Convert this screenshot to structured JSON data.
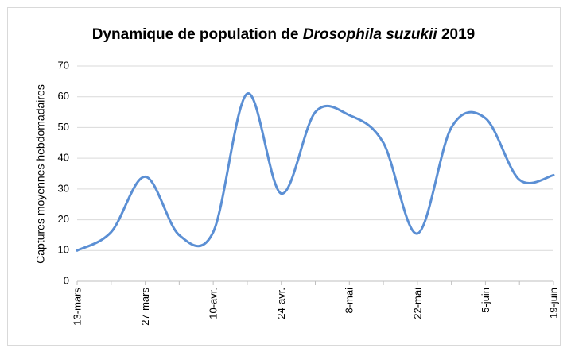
{
  "chart_data": {
    "type": "line",
    "title_parts": [
      "Dynamique de population de",
      "Drosophila suzukii",
      "2019"
    ],
    "y_label": "Captures moyennes hebdomadaires",
    "categories": [
      "13-mars",
      null,
      "27-mars",
      null,
      "10-avr.",
      null,
      "24-avr.",
      null,
      "8-mai",
      null,
      "22-mai",
      null,
      "5-juin",
      null,
      "19-juin"
    ],
    "series": [
      {
        "name": "Captures",
        "color": "#5b8fd4",
        "values": [
          10,
          16,
          34,
          15,
          16,
          61,
          28.5,
          55,
          54,
          45,
          15.5,
          50,
          53,
          33,
          34.5
        ]
      }
    ],
    "ylim": [
      0,
      70
    ],
    "yticks": [
      0,
      10,
      20,
      30,
      40,
      50,
      60,
      70
    ],
    "grid": true
  }
}
